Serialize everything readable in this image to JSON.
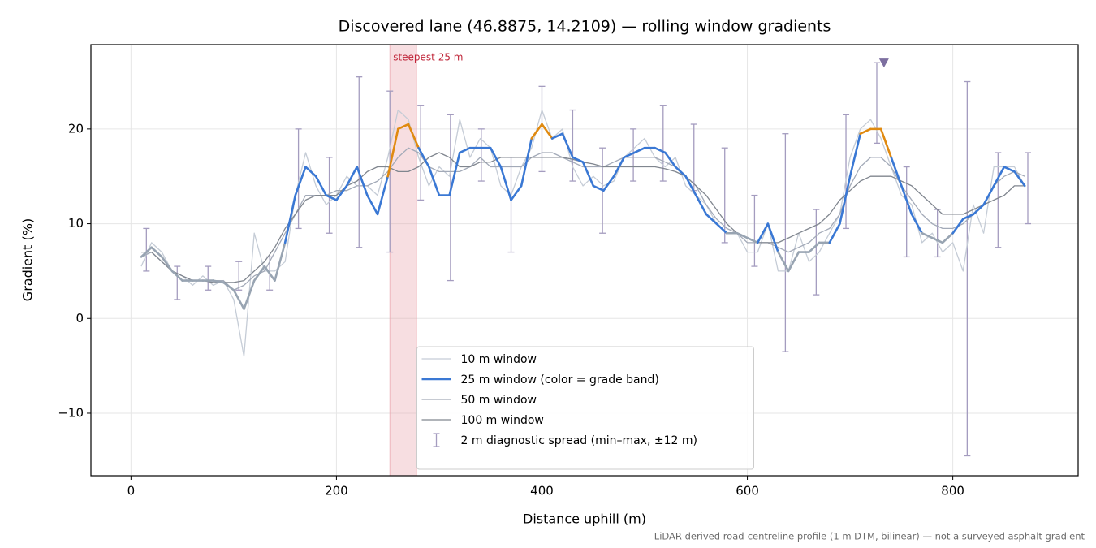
{
  "chart_data": {
    "type": "line",
    "title": "Discovered lane (46.8875, 14.2109) — rolling window gradients",
    "x_label": "Distance uphill (m)",
    "y_label": "Gradient (%)",
    "footnote": "LiDAR-derived road-centreline profile (1 m DTM, bilinear) — not a surveyed asphalt gradient",
    "xlim": [
      -39,
      922
    ],
    "ylim": [
      -16.6,
      28.9
    ],
    "xticks": [
      0,
      200,
      400,
      600,
      800
    ],
    "yticks": [
      {
        "value": -10,
        "label": "−10"
      },
      0,
      10,
      20
    ],
    "grid": true,
    "legend": "lower center",
    "x": [
      10,
      20,
      30,
      40,
      50,
      60,
      70,
      80,
      90,
      100,
      110,
      120,
      130,
      140,
      150,
      160,
      170,
      180,
      190,
      200,
      210,
      220,
      230,
      240,
      250,
      260,
      270,
      280,
      290,
      300,
      310,
      320,
      330,
      340,
      350,
      360,
      370,
      380,
      390,
      400,
      410,
      420,
      430,
      440,
      450,
      460,
      470,
      480,
      490,
      500,
      510,
      520,
      530,
      540,
      550,
      560,
      570,
      580,
      590,
      600,
      610,
      620,
      630,
      640,
      650,
      660,
      670,
      680,
      690,
      700,
      710,
      720,
      730,
      740,
      750,
      760,
      770,
      780,
      790,
      800,
      810,
      820,
      830,
      840,
      850,
      860,
      870
    ],
    "series": [
      {
        "name": "10 m window",
        "color": "#c5ccd6",
        "width": 1.3,
        "values": [
          5.5,
          8,
          7,
          5,
          4.5,
          3.5,
          4.5,
          3.5,
          4,
          2,
          -4,
          9,
          5,
          5,
          6,
          13,
          17.5,
          14,
          12,
          13,
          15,
          14,
          14,
          13,
          17,
          22,
          21,
          17,
          14,
          16,
          15,
          21,
          17,
          19,
          18,
          14,
          13,
          16,
          18,
          22,
          19,
          20,
          16,
          14,
          15,
          14,
          14.5,
          17,
          18,
          19,
          17,
          16,
          17,
          14,
          13,
          12,
          10,
          9,
          9,
          7,
          7,
          10,
          5,
          5,
          9,
          6,
          7,
          9,
          11,
          17,
          20,
          21,
          19,
          16,
          13,
          12,
          8,
          9,
          7,
          8,
          5,
          12,
          9,
          16,
          16,
          16,
          14
        ]
      },
      {
        "name": "25 m window (color = grade band)",
        "color": "#3a78d4",
        "width": 2.6,
        "grade_colors": [
          {
            "below": 10,
            "color": "#98a4b2"
          },
          {
            "below": 20,
            "color": "#3a78d4"
          },
          {
            "color": "#e08a10"
          }
        ],
        "values": [
          6.5,
          7.5,
          6.5,
          5,
          4,
          4,
          4,
          4,
          3.8,
          3,
          1,
          4,
          5.5,
          4,
          8,
          13,
          16,
          15,
          13,
          12.5,
          14,
          16,
          13,
          11,
          15,
          20,
          20.5,
          18,
          16,
          13,
          13,
          17.5,
          18,
          18,
          18,
          16,
          12.5,
          14,
          19,
          20.5,
          19,
          19.5,
          17,
          16.5,
          14,
          13.5,
          15,
          17,
          17.5,
          18,
          18,
          17.5,
          16,
          15,
          13,
          11,
          10,
          9,
          9,
          8.5,
          8,
          10,
          7,
          5,
          7,
          7,
          8,
          8,
          10,
          15,
          19.5,
          20,
          20,
          17,
          14,
          11,
          9,
          8.5,
          8,
          9,
          10.5,
          11,
          12,
          14,
          16,
          15.5,
          14
        ]
      },
      {
        "name": "50 m window",
        "color": "#a3aab8",
        "width": 1.3,
        "values": [
          6.5,
          7,
          6,
          5,
          4.5,
          4,
          4,
          4,
          4,
          3,
          3.5,
          4.5,
          5,
          7,
          9,
          11,
          13,
          13,
          13,
          13.5,
          13.5,
          14,
          14,
          14.5,
          15.5,
          17,
          18,
          17.5,
          16,
          15.5,
          15.5,
          15.5,
          16,
          17,
          16,
          16,
          16,
          16,
          17,
          17.5,
          17.5,
          17,
          16.5,
          16,
          16,
          16,
          16.5,
          17,
          17,
          17,
          17,
          16.5,
          16,
          15,
          14,
          12,
          10.5,
          9.5,
          9,
          8,
          8,
          8,
          7.5,
          7,
          7.5,
          8,
          9,
          9.5,
          11,
          14,
          16,
          17,
          17,
          16,
          14,
          12.5,
          11,
          10,
          9.5,
          9.5,
          10,
          11,
          12,
          14,
          15,
          15.5,
          15
        ]
      },
      {
        "name": "100 m window",
        "color": "#80868f",
        "width": 1.3,
        "values": [
          7,
          7,
          6,
          5,
          4.5,
          4,
          4,
          3.8,
          3.8,
          3.8,
          4,
          5,
          6,
          7.5,
          9.5,
          11,
          12.5,
          13,
          13,
          13,
          14,
          14.5,
          15.5,
          16,
          16,
          15.5,
          15.5,
          16,
          17,
          17.5,
          17,
          16,
          16,
          16.5,
          16.5,
          17,
          17,
          17,
          17,
          17,
          17,
          17,
          16.8,
          16.5,
          16.3,
          16,
          16,
          16,
          16,
          16,
          16,
          15.8,
          15.5,
          15,
          14,
          13,
          11.5,
          10,
          9,
          8.5,
          8,
          8,
          8,
          8.5,
          9,
          9.5,
          10,
          11,
          12.5,
          13.5,
          14.5,
          15,
          15,
          15,
          14.5,
          14,
          13,
          12,
          11,
          11,
          11,
          11.5,
          12,
          12.5,
          13,
          14,
          14
        ]
      }
    ],
    "spread": {
      "name": "2 m diagnostic spread (min–max, ±12 m)",
      "color": "#a49cbf",
      "x": [
        15,
        45,
        75,
        105,
        135,
        163,
        193,
        222,
        252,
        282,
        311,
        341,
        370,
        400,
        430,
        459,
        489,
        518,
        548,
        578,
        607,
        637,
        667,
        696,
        726,
        755,
        785,
        814,
        844,
        873
      ],
      "low": [
        5,
        2,
        3,
        3,
        3,
        9.5,
        9,
        7.5,
        7,
        12.5,
        4,
        14.5,
        7,
        15.5,
        14.5,
        9,
        14.5,
        14.5,
        13.5,
        8,
        5.5,
        -3.5,
        2.5,
        9.5,
        18.5,
        6.5,
        6.5,
        -14.5,
        7.5,
        10
      ],
      "high": [
        9.5,
        5.5,
        5.5,
        6,
        6.5,
        20,
        17,
        25.5,
        24,
        22.5,
        21.5,
        20,
        17,
        24.5,
        22,
        18,
        20,
        22.5,
        20.5,
        18,
        13,
        19.5,
        11.5,
        21.5,
        27,
        16,
        11.5,
        25,
        17.5,
        17.5
      ]
    },
    "steepest": {
      "label": "steepest 25 m",
      "x": [
        252,
        278
      ],
      "color": "#e8a0a8",
      "text_color": "#c0263a"
    },
    "peak_marker": {
      "x": 733,
      "y": 27,
      "color": "#7d6fa0"
    }
  }
}
